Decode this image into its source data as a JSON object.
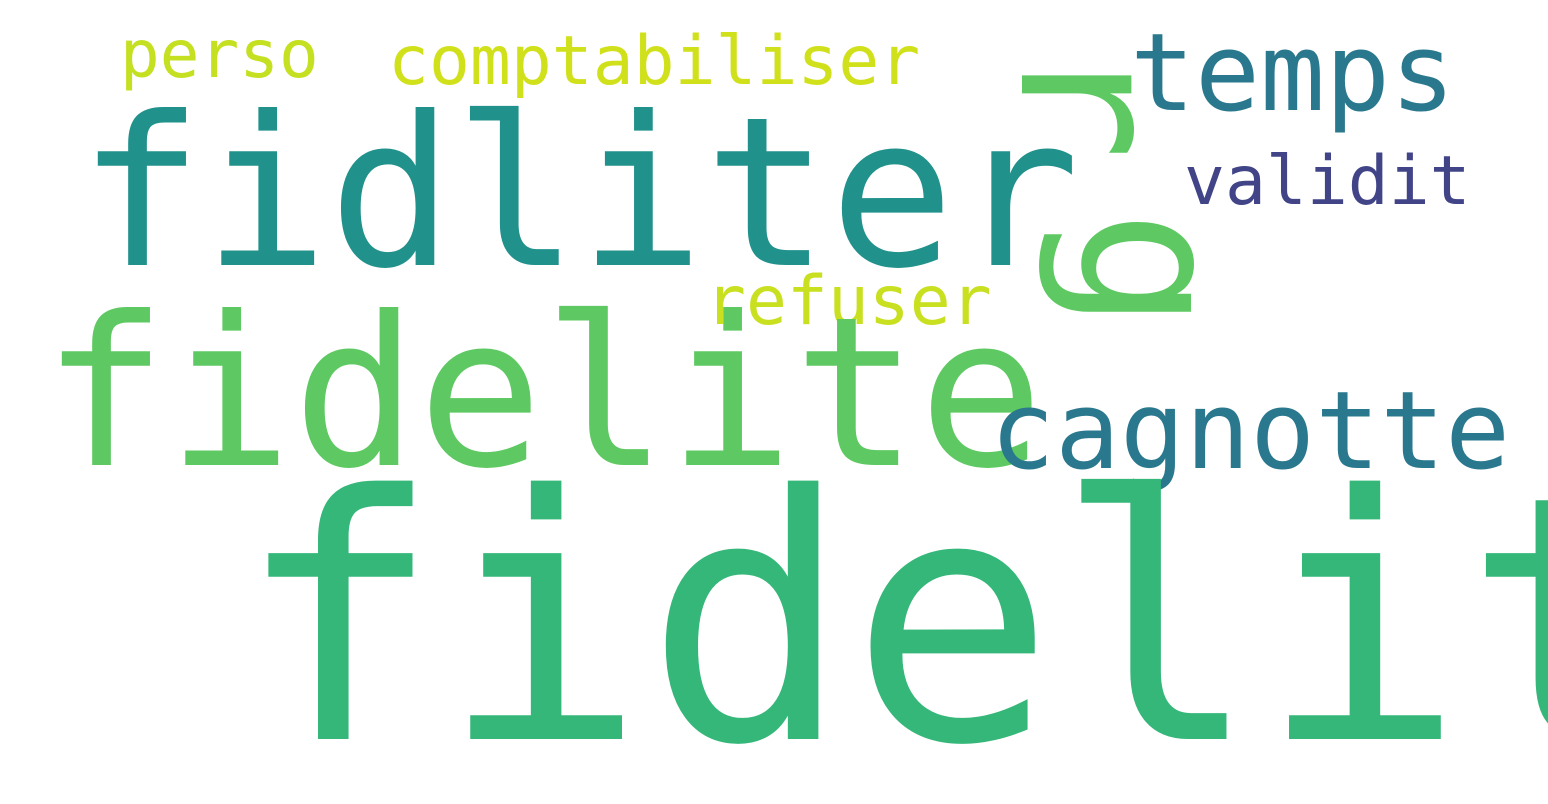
{
  "words": {
    "perso": {
      "text": "perso",
      "color": "#c5e021"
    },
    "comptabiliser": {
      "text": "comptabiliser",
      "color": "#d0e11c"
    },
    "temps": {
      "text": "temps",
      "color": "#2a788e"
    },
    "fidliter": {
      "text": "fidliter",
      "color": "#21918c"
    },
    "validit": {
      "text": "validit",
      "color": "#414487"
    },
    "refuser": {
      "text": "refuser",
      "color": "#c8e020"
    },
    "fidelite": {
      "text": "fidelite",
      "color": "#5ec962"
    },
    "cagnotte": {
      "text": "cagnotte",
      "color": "#2a788e"
    },
    "fidelit": {
      "text": "fidelit",
      "color": "#35b779"
    },
    "r": {
      "text": "r",
      "color": "#5ec962"
    },
    "g": {
      "text": "g",
      "color": "#5ec962"
    }
  }
}
